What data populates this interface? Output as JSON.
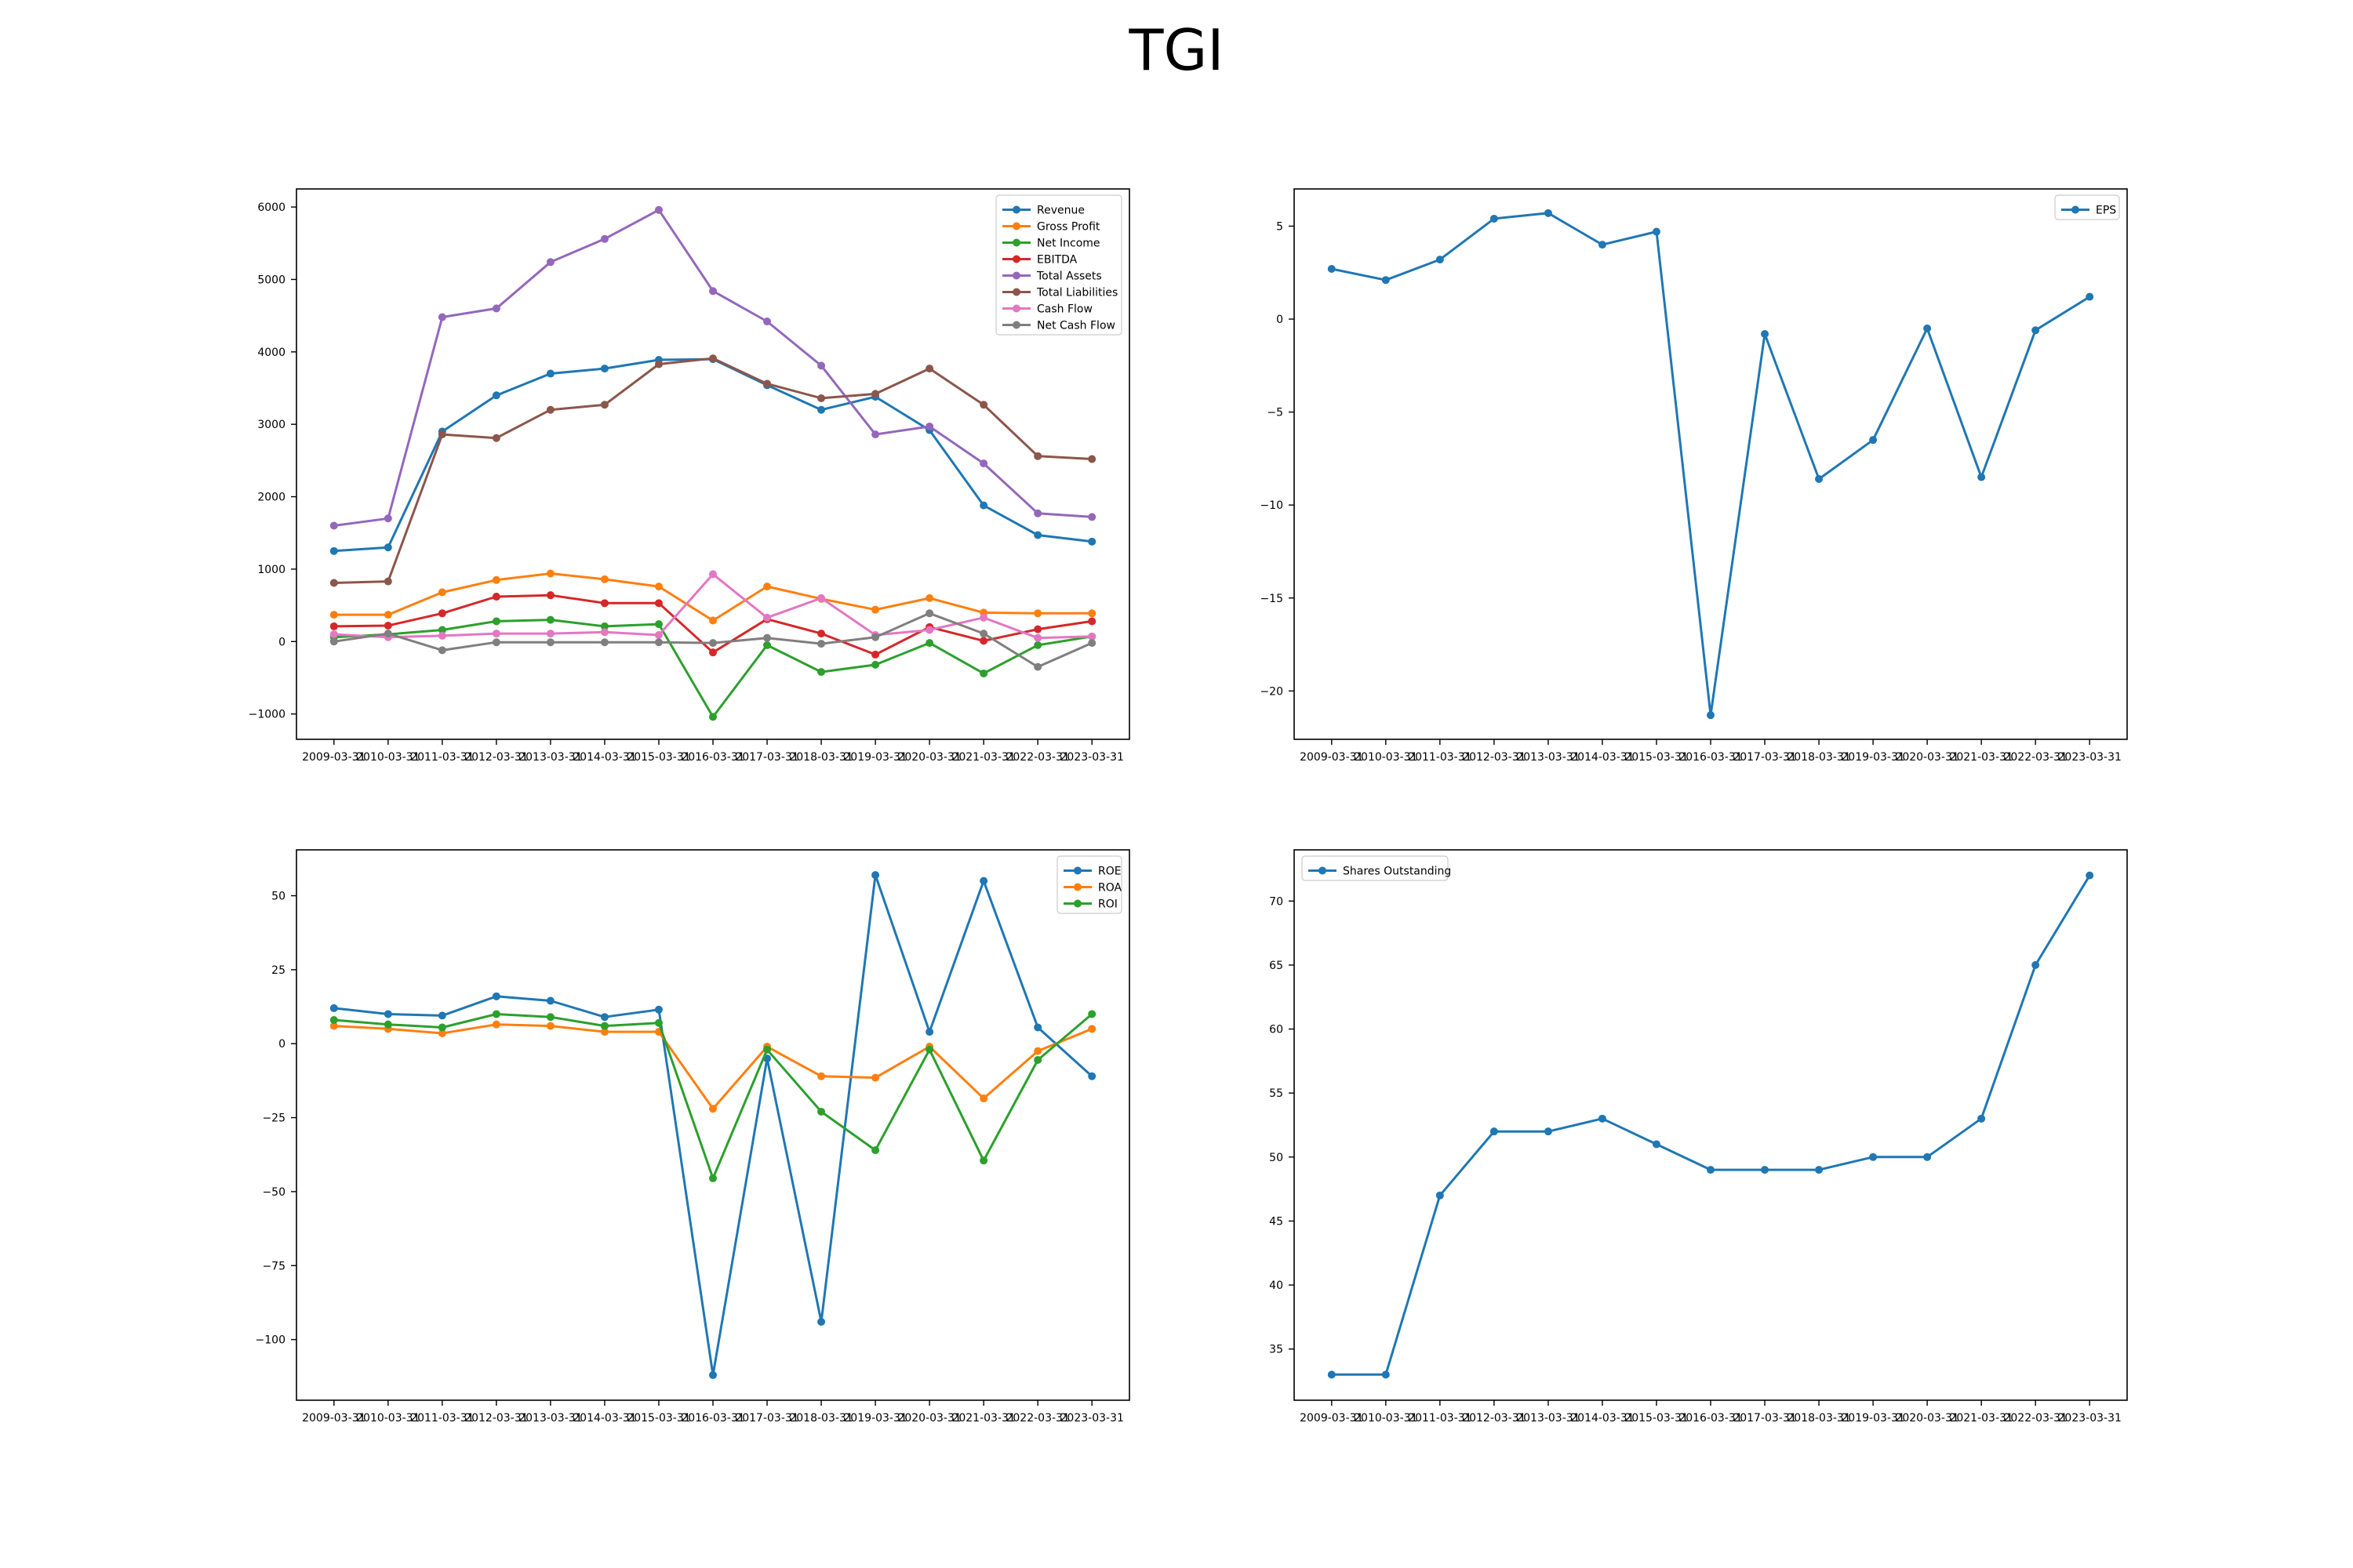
{
  "figure_title": "TGI",
  "chart_data": [
    {
      "type": "line",
      "categories": [
        "2009-03-31",
        "2010-03-31",
        "2011-03-31",
        "2012-03-31",
        "2013-03-31",
        "2014-03-31",
        "2015-03-31",
        "2016-03-31",
        "2017-03-31",
        "2018-03-31",
        "2019-03-31",
        "2020-03-31",
        "2021-03-31",
        "2022-03-31",
        "2023-03-31"
      ],
      "ylim": [
        -1350,
        6250
      ],
      "yticks": [
        -1000,
        0,
        1000,
        2000,
        3000,
        4000,
        5000,
        6000
      ],
      "ytick_labels": [
        "−1000",
        "0",
        "1000",
        "2000",
        "3000",
        "4000",
        "5000",
        "6000"
      ],
      "legend_position": "top-right",
      "series": [
        {
          "name": "Revenue",
          "color": "#1f77b4",
          "values": [
            1250,
            1300,
            2900,
            3400,
            3700,
            3770,
            3890,
            3900,
            3540,
            3200,
            3380,
            2920,
            1880,
            1470,
            1380
          ]
        },
        {
          "name": "Gross Profit",
          "color": "#ff7f0e",
          "values": [
            370,
            370,
            680,
            850,
            940,
            860,
            760,
            290,
            760,
            590,
            440,
            600,
            400,
            390,
            390
          ]
        },
        {
          "name": "Net Income",
          "color": "#2ca02c",
          "values": [
            60,
            100,
            160,
            280,
            300,
            210,
            240,
            -1040,
            -50,
            -420,
            -320,
            -20,
            -440,
            -50,
            70
          ]
        },
        {
          "name": "EBITDA",
          "color": "#d62728",
          "values": [
            210,
            220,
            390,
            620,
            640,
            530,
            530,
            -150,
            310,
            110,
            -180,
            200,
            10,
            170,
            280
          ]
        },
        {
          "name": "Total Assets",
          "color": "#9467bd",
          "values": [
            1600,
            1700,
            4480,
            4600,
            5240,
            5560,
            5960,
            4840,
            4420,
            3810,
            2860,
            2970,
            2460,
            1770,
            1720
          ]
        },
        {
          "name": "Total Liabilities",
          "color": "#8c564b",
          "values": [
            810,
            830,
            2860,
            2810,
            3200,
            3270,
            3830,
            3910,
            3560,
            3360,
            3420,
            3770,
            3270,
            2560,
            2520
          ]
        },
        {
          "name": "Cash Flow",
          "color": "#e377c2",
          "values": [
            100,
            60,
            80,
            110,
            110,
            130,
            90,
            930,
            330,
            600,
            90,
            160,
            330,
            50,
            70
          ]
        },
        {
          "name": "Net Cash Flow",
          "color": "#7f7f7f",
          "values": [
            0,
            110,
            -120,
            -10,
            -10,
            -10,
            -10,
            -20,
            50,
            -30,
            60,
            390,
            110,
            -350,
            -20
          ]
        }
      ]
    },
    {
      "type": "line",
      "categories": [
        "2009-03-31",
        "2010-03-31",
        "2011-03-31",
        "2012-03-31",
        "2013-03-31",
        "2014-03-31",
        "2015-03-31",
        "2016-03-31",
        "2017-03-31",
        "2018-03-31",
        "2019-03-31",
        "2020-03-31",
        "2021-03-31",
        "2022-03-31",
        "2023-03-31"
      ],
      "ylim": [
        -22.6,
        7.0
      ],
      "yticks": [
        -20,
        -15,
        -10,
        -5,
        0,
        5
      ],
      "ytick_labels": [
        "−20",
        "−15",
        "−10",
        "−5",
        "0",
        "5"
      ],
      "legend_position": "top-right",
      "series": [
        {
          "name": "EPS",
          "color": "#1f77b4",
          "values": [
            2.7,
            2.1,
            3.2,
            5.4,
            5.7,
            4.0,
            4.7,
            -21.3,
            -0.8,
            -8.6,
            -6.5,
            -0.5,
            -8.5,
            -0.6,
            1.2
          ]
        }
      ]
    },
    {
      "type": "line",
      "categories": [
        "2009-03-31",
        "2010-03-31",
        "2011-03-31",
        "2012-03-31",
        "2013-03-31",
        "2014-03-31",
        "2015-03-31",
        "2016-03-31",
        "2017-03-31",
        "2018-03-31",
        "2019-03-31",
        "2020-03-31",
        "2021-03-31",
        "2022-03-31",
        "2023-03-31"
      ],
      "ylim": [
        -120.5,
        65.5
      ],
      "yticks": [
        -100,
        -75,
        -50,
        -25,
        0,
        25,
        50
      ],
      "ytick_labels": [
        "−100",
        "−75",
        "−50",
        "−25",
        "0",
        "25",
        "50"
      ],
      "legend_position": "top-right",
      "series": [
        {
          "name": "ROE",
          "color": "#1f77b4",
          "values": [
            12,
            10,
            9.5,
            16,
            14.5,
            9,
            11.5,
            -112,
            -5,
            -94,
            57,
            4,
            55,
            5.5,
            -11
          ]
        },
        {
          "name": "ROA",
          "color": "#ff7f0e",
          "values": [
            6,
            5,
            3.5,
            6.5,
            6,
            4,
            4,
            -22,
            -1,
            -11,
            -11.5,
            -1,
            -18.5,
            -2.5,
            5
          ]
        },
        {
          "name": "ROI",
          "color": "#2ca02c",
          "values": [
            8,
            6.5,
            5.5,
            10,
            9,
            6,
            7,
            -45.5,
            -2,
            -23,
            -36,
            -2,
            -39.5,
            -5.5,
            10
          ]
        }
      ]
    },
    {
      "type": "line",
      "categories": [
        "2009-03-31",
        "2010-03-31",
        "2011-03-31",
        "2012-03-31",
        "2013-03-31",
        "2014-03-31",
        "2015-03-31",
        "2016-03-31",
        "2017-03-31",
        "2018-03-31",
        "2019-03-31",
        "2020-03-31",
        "2021-03-31",
        "2022-03-31",
        "2023-03-31"
      ],
      "ylim": [
        31.0,
        74.0
      ],
      "yticks": [
        35,
        40,
        45,
        50,
        55,
        60,
        65,
        70
      ],
      "ytick_labels": [
        "35",
        "40",
        "45",
        "50",
        "55",
        "60",
        "65",
        "70"
      ],
      "legend_position": "top-left",
      "series": [
        {
          "name": "Shares Outstanding",
          "color": "#1f77b4",
          "values": [
            33,
            33,
            47,
            52,
            52,
            53,
            51,
            49,
            49,
            49,
            50,
            50,
            53,
            65,
            72
          ]
        }
      ]
    }
  ]
}
